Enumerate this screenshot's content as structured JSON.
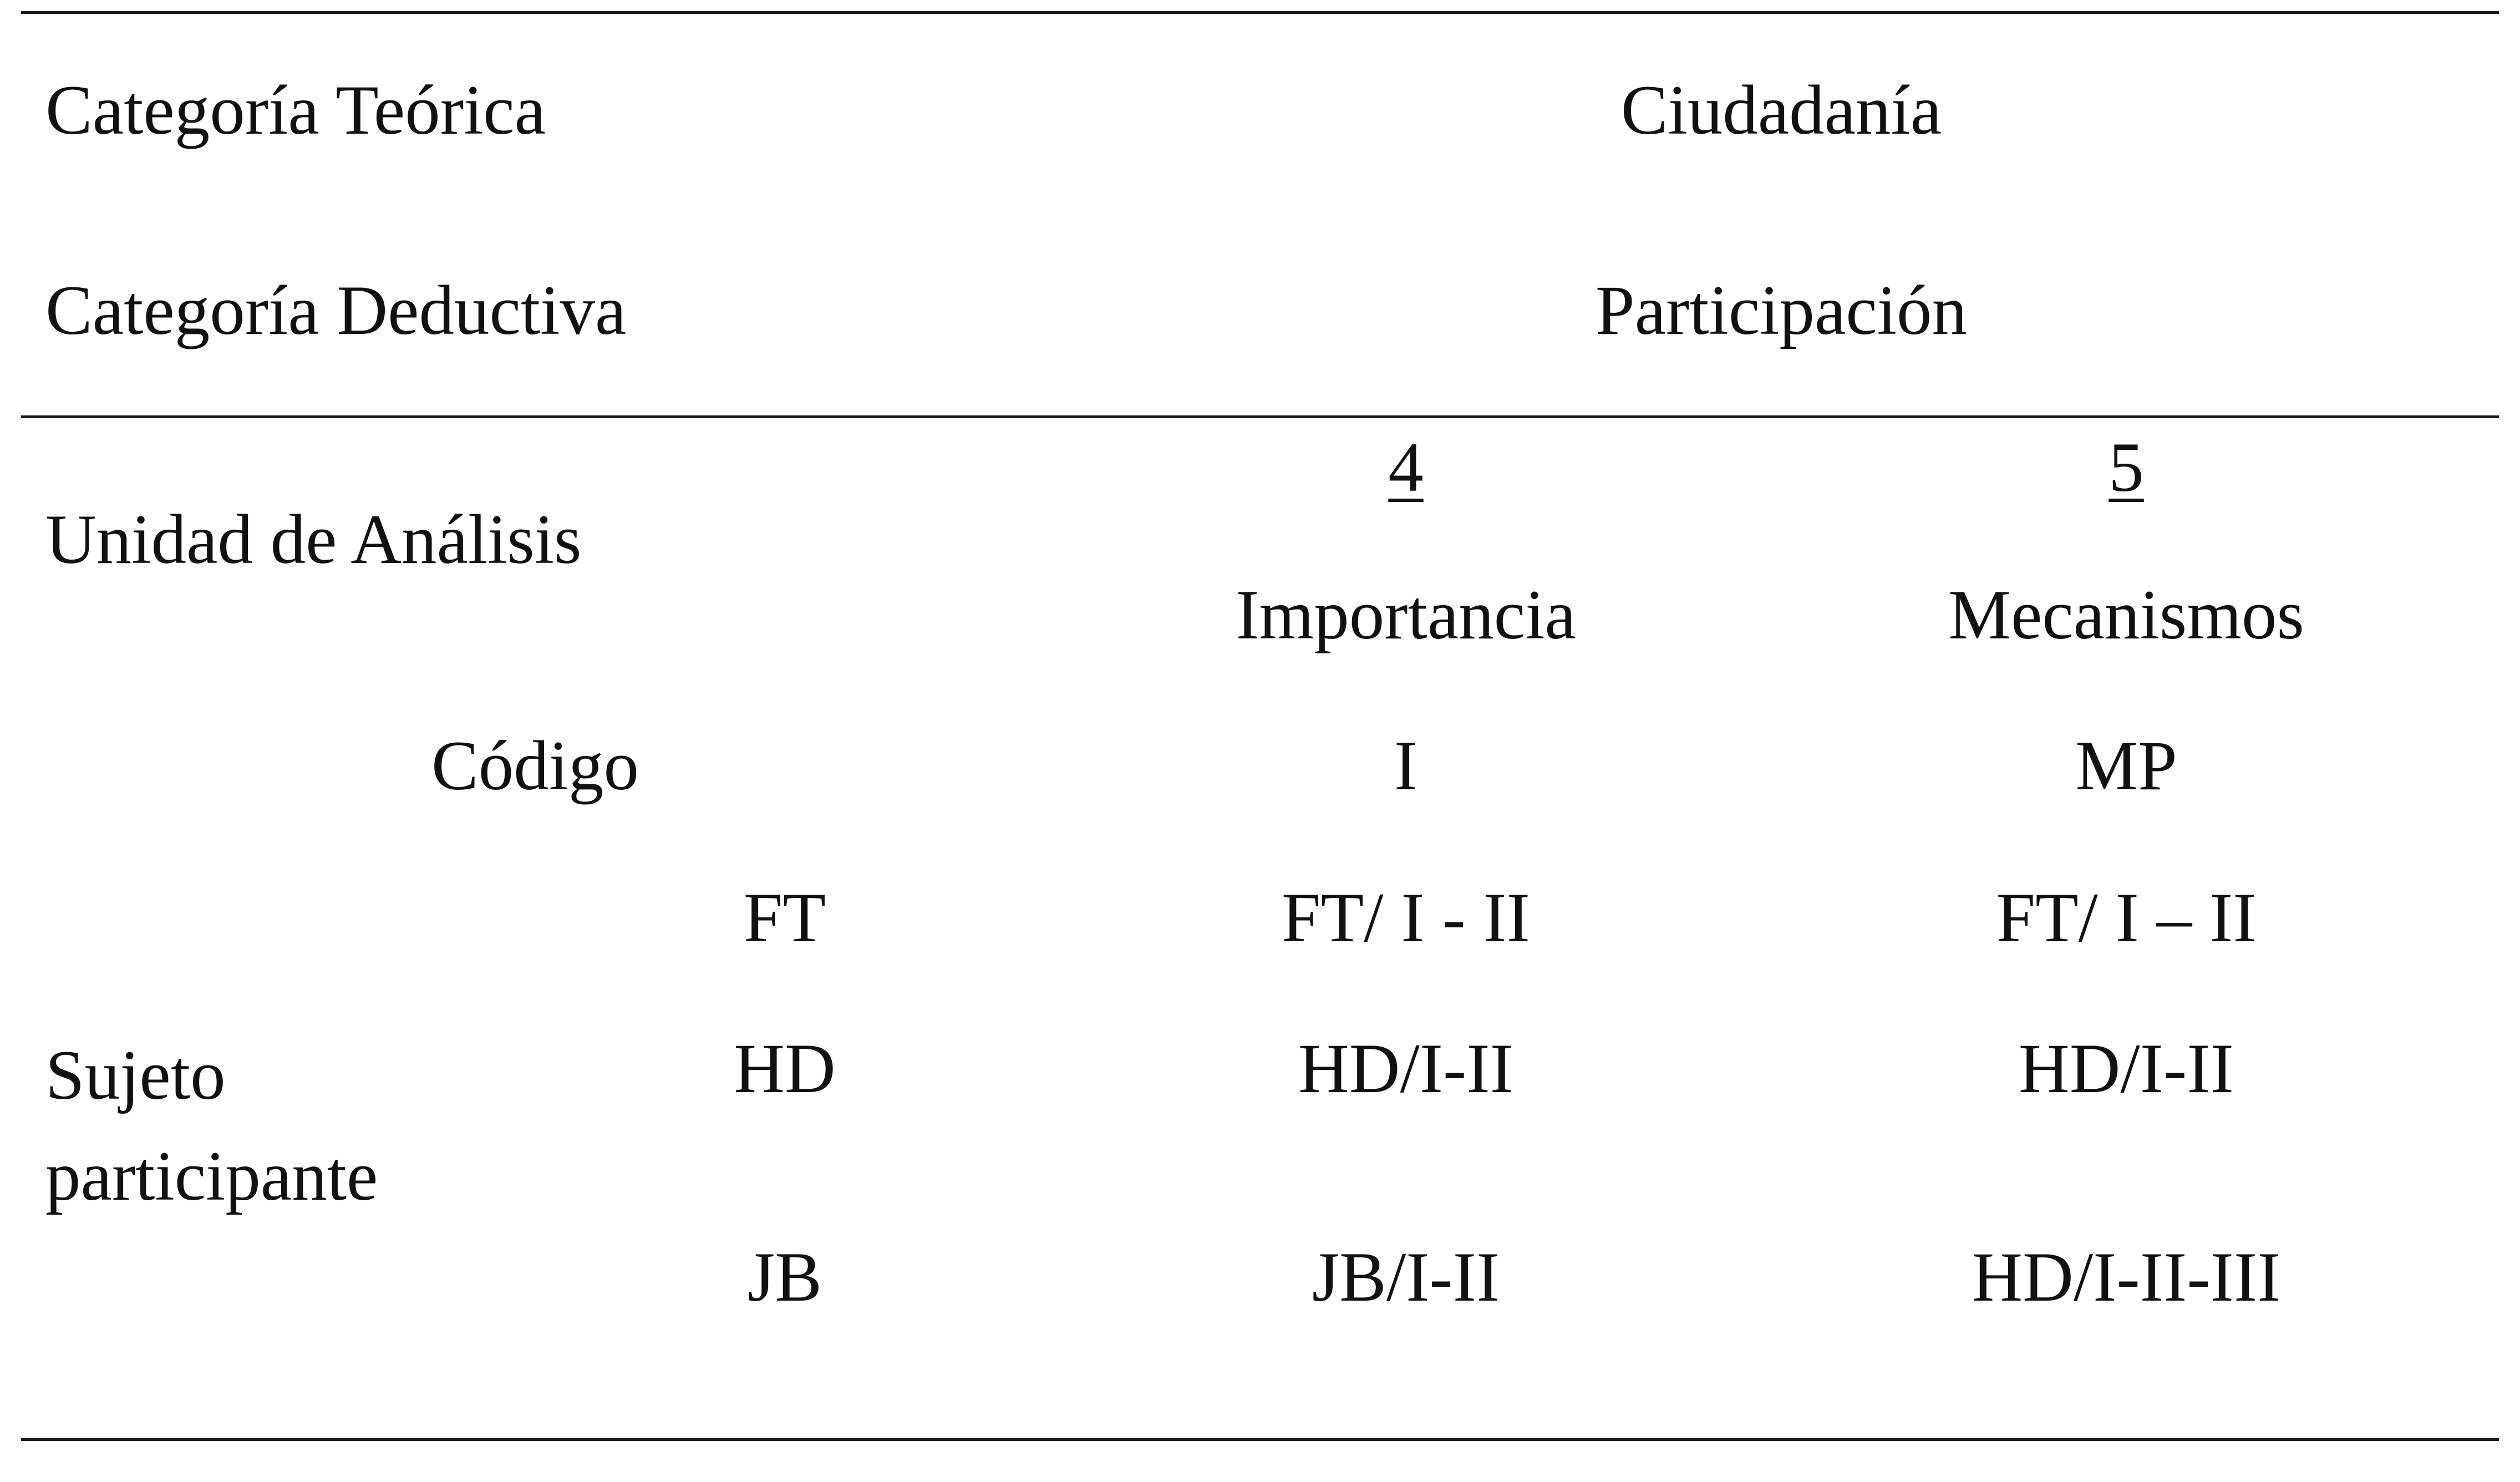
{
  "table": {
    "theoretical_category_label": "Categoría Teórica",
    "theoretical_category_value": "Ciudadanía",
    "deductive_category_label": "Categoría Deductiva",
    "deductive_category_value": "Participación",
    "analysis_unit_label": "Unidad de Análisis",
    "columns": [
      {
        "number": "4",
        "name": "Importancia",
        "code": "I"
      },
      {
        "number": "5",
        "name": "Mecanismos",
        "code": "MP"
      }
    ],
    "code_label": "Código",
    "subject_label_line1": "Sujeto",
    "subject_label_line2": "participante",
    "rows": [
      {
        "subject": "FT",
        "importance": "FT/ I - II",
        "mechanisms": "FT/ I – II"
      },
      {
        "subject": "HD",
        "importance": "HD/I-II",
        "mechanisms": "HD/I-II"
      },
      {
        "subject": "JB",
        "importance": "JB/I-II",
        "mechanisms": "HD/I-II-III"
      }
    ]
  }
}
